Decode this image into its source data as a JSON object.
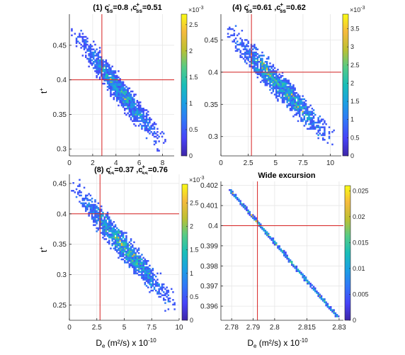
{
  "figure": {
    "x_axis_label_main": "D",
    "x_axis_label_sub": "e",
    "x_axis_label_rest": " (m²/s) x 10",
    "x_axis_label_exp": "-10",
    "y_axis_label_main": "t",
    "y_axis_label_sup": "+"
  },
  "colormap": [
    "#3e26a8",
    "#4743f8",
    "#3176f8",
    "#1ba0e3",
    "#19beb8",
    "#55cb86",
    "#bdc032",
    "#f5ba3d",
    "#f9fb15"
  ],
  "chart_data": [
    {
      "type": "heatmap",
      "title_parts": [
        "(1) c",
        "-",
        "ss",
        "=0.8 ,c",
        "+",
        "ss",
        "=0.51"
      ],
      "xlim": [
        0,
        9
      ],
      "ylim": [
        0.29,
        0.495
      ],
      "xticks": [
        0,
        2,
        4,
        6,
        8
      ],
      "xtick_labels": [
        "0",
        "2",
        "4",
        "6",
        "8"
      ],
      "yticks": [
        0.3,
        0.35,
        0.4,
        0.45
      ],
      "ytick_labels": [
        "0.3",
        "0.35",
        "0.4",
        "0.45"
      ],
      "reference_point": {
        "x": 2.79,
        "y": 0.4
      },
      "density_trend": {
        "x": [
          0.5,
          7.8
        ],
        "y": [
          0.465,
          0.31
        ]
      },
      "colorbar": {
        "max": 2.7,
        "ticks": [
          0,
          0.5,
          1,
          1.5,
          2,
          2.5
        ],
        "tick_labels": [
          "0",
          "0.5",
          "1",
          "1.5",
          "2",
          "2.5"
        ],
        "scale_label": "×10",
        "scale_exp": "-3"
      },
      "grid": true
    },
    {
      "type": "heatmap",
      "title_parts": [
        "(4) c",
        "-",
        "ss",
        "=0.61 ,c",
        "+",
        "ss",
        "=0.62"
      ],
      "xlim": [
        0,
        11
      ],
      "ylim": [
        0.27,
        0.49
      ],
      "xticks": [
        0,
        2.5,
        5,
        7.5,
        10
      ],
      "xtick_labels": [
        "0",
        "2.5",
        "5",
        "7.5",
        "10"
      ],
      "yticks": [
        0.3,
        0.35,
        0.4,
        0.45
      ],
      "ytick_labels": [
        "0.3",
        "0.35",
        "0.4",
        "0.45"
      ],
      "reference_point": {
        "x": 2.79,
        "y": 0.4
      },
      "density_trend": {
        "x": [
          0.8,
          9.8
        ],
        "y": [
          0.46,
          0.3
        ]
      },
      "colorbar": {
        "max": 3.9,
        "ticks": [
          0,
          0.5,
          1,
          1.5,
          2,
          2.5,
          3,
          3.5
        ],
        "tick_labels": [
          "0",
          "0.5",
          "1",
          "1.5",
          "2",
          "2.5",
          "3",
          "3.5"
        ],
        "scale_label": "×10",
        "scale_exp": "-3"
      },
      "grid": true
    },
    {
      "type": "heatmap",
      "title_parts": [
        "(8) c",
        "-",
        "ss",
        "=0.37 ,c",
        "+",
        "ss",
        "=0.76"
      ],
      "xlim": [
        0,
        10
      ],
      "ylim": [
        0.225,
        0.465
      ],
      "xticks": [
        0,
        2.5,
        5,
        7.5,
        10
      ],
      "xtick_labels": [
        "0",
        "2.5",
        "5",
        "7.5",
        "10"
      ],
      "yticks": [
        0.25,
        0.3,
        0.35,
        0.4,
        0.45
      ],
      "ytick_labels": [
        "0.25",
        "0.3",
        "0.35",
        "0.4",
        "0.45"
      ],
      "reference_point": {
        "x": 2.79,
        "y": 0.4
      },
      "density_trend": {
        "x": [
          0.5,
          9.2
        ],
        "y": [
          0.44,
          0.255
        ]
      },
      "colorbar": {
        "max": 2.9,
        "ticks": [
          0,
          0.5,
          1,
          1.5,
          2,
          2.5
        ],
        "tick_labels": [
          "0",
          "0.5",
          "1",
          "1.5",
          "2",
          "2.5"
        ],
        "scale_label": "×10",
        "scale_exp": "-3"
      },
      "grid": true
    },
    {
      "type": "heatmap",
      "title_parts": [
        "Wide excursion"
      ],
      "xlim": [
        2.775,
        2.832
      ],
      "ylim": [
        0.3953,
        0.4022
      ],
      "xticks": [
        2.78,
        2.79,
        2.8,
        2.815,
        2.83
      ],
      "xtick_labels": [
        "2.78",
        "2.79",
        "2.8",
        "2.815",
        "2.83"
      ],
      "yticks": [
        0.396,
        0.397,
        0.398,
        0.399,
        0.4,
        0.401,
        0.402
      ],
      "ytick_labels": [
        "0.396",
        "0.397",
        "0.398",
        "0.399",
        "0.4",
        "0.401",
        "0.402"
      ],
      "reference_point": {
        "x": 2.792,
        "y": 0.4
      },
      "density_trend": {
        "x": [
          2.779,
          2.829
        ],
        "y": [
          0.4018,
          0.3955
        ]
      },
      "colorbar": {
        "max": 0.026,
        "ticks": [
          0,
          0.005,
          0.01,
          0.015,
          0.02,
          0.025
        ],
        "tick_labels": [
          "0",
          "0.005",
          "0.01",
          "0.015",
          "0.02",
          "0.025"
        ],
        "scale_label": "",
        "scale_exp": ""
      },
      "grid": true
    }
  ]
}
